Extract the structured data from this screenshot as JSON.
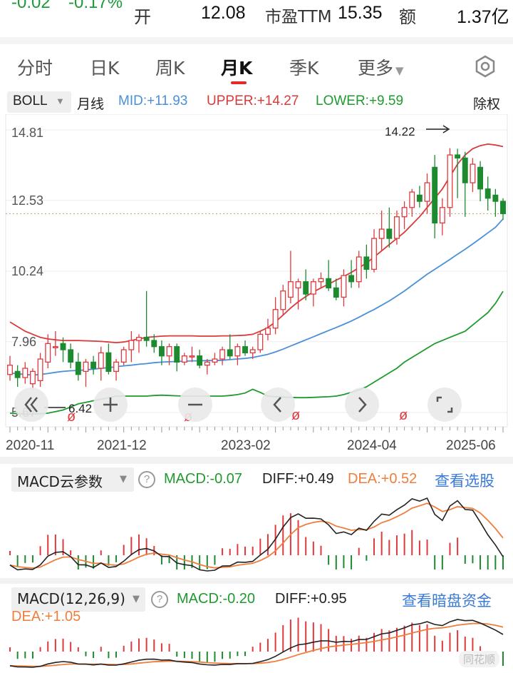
{
  "quote": {
    "change": "-0.02",
    "change_pct": "-0.17%",
    "open_label": "开",
    "open_value": "12.08",
    "pe_label": "市盈TTM",
    "pe_value": "15.35",
    "amount_label": "额",
    "amount_value": "1.37亿"
  },
  "tabs": [
    {
      "label": "分时"
    },
    {
      "label": "日K"
    },
    {
      "label": "周K"
    },
    {
      "label": "月K"
    },
    {
      "label": "季K"
    },
    {
      "label": "更多"
    }
  ],
  "active_tab": "月K",
  "indicator": {
    "name": "BOLL",
    "period": "月线",
    "mid": "MID:+11.93",
    "upper": "UPPER:+14.27",
    "lower": "LOWER:+9.59",
    "adjust": "除权"
  },
  "colors": {
    "up": "#e0393e",
    "down": "#1d8a2f",
    "mid": "#4a90d9",
    "upper": "#d93a3a",
    "lower": "#1f9a2e",
    "dea": "#ef7d3c",
    "diff": "#222222",
    "link": "#3a7bd5"
  },
  "main_chart": {
    "y_ticks": [
      "14.81",
      "12.53",
      "10.24",
      "7.96",
      "5.67"
    ],
    "x_ticks": [
      "2020-11",
      "2021-12",
      "2023-02",
      "2024-04",
      "2025-06"
    ],
    "high_annotation": "14.22",
    "low_annotation": "6.42",
    "ex_marker": "ø",
    "last_price_line": 12.1
  },
  "macd_cloud": {
    "name": "MACD云参数",
    "macd": "MACD:-0.07",
    "diff": "DIFF:+0.49",
    "dea": "DEA:+0.52",
    "link": "查看选股"
  },
  "macd": {
    "name": "MACD(12,26,9)",
    "macd": "MACD:-0.20",
    "diff": "DIFF:+0.95",
    "dea": "DEA:+1.05",
    "link": "查看暗盘资金",
    "watermark": "同花顺"
  },
  "chart_data": {
    "type": "candlestick",
    "ylim": [
      5.67,
      14.81
    ],
    "candles": [
      {
        "o": 6.9,
        "h": 7.5,
        "l": 6.7,
        "c": 7.2
      },
      {
        "o": 7.0,
        "h": 7.2,
        "l": 6.5,
        "c": 6.8
      },
      {
        "o": 6.8,
        "h": 7.3,
        "l": 6.6,
        "c": 7.1
      },
      {
        "o": 6.6,
        "h": 7.1,
        "l": 6.42,
        "c": 7.0
      },
      {
        "o": 6.7,
        "h": 7.6,
        "l": 6.5,
        "c": 7.4
      },
      {
        "o": 7.3,
        "h": 8.2,
        "l": 7.1,
        "c": 7.9
      },
      {
        "o": 7.8,
        "h": 8.3,
        "l": 7.5,
        "c": 7.8
      },
      {
        "o": 7.9,
        "h": 8.1,
        "l": 7.3,
        "c": 7.7
      },
      {
        "o": 7.7,
        "h": 7.9,
        "l": 7.1,
        "c": 7.3
      },
      {
        "o": 7.3,
        "h": 7.6,
        "l": 6.7,
        "c": 6.9
      },
      {
        "o": 7.0,
        "h": 7.4,
        "l": 6.5,
        "c": 7.3
      },
      {
        "o": 7.3,
        "h": 7.5,
        "l": 6.9,
        "c": 7.1
      },
      {
        "o": 7.1,
        "h": 7.8,
        "l": 6.7,
        "c": 7.6
      },
      {
        "o": 7.6,
        "h": 7.9,
        "l": 6.9,
        "c": 7.0
      },
      {
        "o": 7.0,
        "h": 7.4,
        "l": 6.7,
        "c": 7.3
      },
      {
        "o": 7.3,
        "h": 7.8,
        "l": 7.2,
        "c": 7.7
      },
      {
        "o": 7.7,
        "h": 8.3,
        "l": 7.3,
        "c": 8.0
      },
      {
        "o": 8.0,
        "h": 8.2,
        "l": 7.6,
        "c": 8.1
      },
      {
        "o": 8.1,
        "h": 9.6,
        "l": 7.8,
        "c": 8.0
      },
      {
        "o": 8.0,
        "h": 8.2,
        "l": 7.6,
        "c": 7.8
      },
      {
        "o": 7.8,
        "h": 8.0,
        "l": 7.2,
        "c": 7.5
      },
      {
        "o": 7.5,
        "h": 7.9,
        "l": 7.2,
        "c": 7.8
      },
      {
        "o": 7.8,
        "h": 7.9,
        "l": 7.0,
        "c": 7.3
      },
      {
        "o": 7.3,
        "h": 7.6,
        "l": 7.2,
        "c": 7.5
      },
      {
        "o": 7.5,
        "h": 7.8,
        "l": 7.3,
        "c": 7.5
      },
      {
        "o": 7.5,
        "h": 7.7,
        "l": 7.1,
        "c": 7.2
      },
      {
        "o": 7.2,
        "h": 7.4,
        "l": 6.9,
        "c": 7.3
      },
      {
        "o": 7.3,
        "h": 7.6,
        "l": 7.2,
        "c": 7.4
      },
      {
        "o": 7.4,
        "h": 7.8,
        "l": 7.2,
        "c": 7.7
      },
      {
        "o": 7.7,
        "h": 8.2,
        "l": 7.4,
        "c": 7.5
      },
      {
        "o": 7.5,
        "h": 7.9,
        "l": 7.2,
        "c": 7.8
      },
      {
        "o": 7.8,
        "h": 8.0,
        "l": 7.5,
        "c": 7.6
      },
      {
        "o": 7.6,
        "h": 7.8,
        "l": 7.4,
        "c": 7.7
      },
      {
        "o": 7.7,
        "h": 8.3,
        "l": 7.6,
        "c": 8.2
      },
      {
        "o": 8.2,
        "h": 8.7,
        "l": 8.0,
        "c": 8.4
      },
      {
        "o": 8.4,
        "h": 9.4,
        "l": 8.2,
        "c": 9.0
      },
      {
        "o": 9.0,
        "h": 9.8,
        "l": 8.8,
        "c": 9.6
      },
      {
        "o": 9.4,
        "h": 10.9,
        "l": 9.2,
        "c": 9.9
      },
      {
        "o": 9.7,
        "h": 10.0,
        "l": 9.0,
        "c": 9.9
      },
      {
        "o": 9.9,
        "h": 10.3,
        "l": 9.3,
        "c": 9.5
      },
      {
        "o": 9.5,
        "h": 10.0,
        "l": 9.1,
        "c": 9.9
      },
      {
        "o": 9.9,
        "h": 10.2,
        "l": 9.7,
        "c": 10.0
      },
      {
        "o": 10.0,
        "h": 10.6,
        "l": 9.6,
        "c": 9.7
      },
      {
        "o": 9.7,
        "h": 10.0,
        "l": 9.3,
        "c": 9.4
      },
      {
        "o": 9.4,
        "h": 10.3,
        "l": 9.1,
        "c": 10.1
      },
      {
        "o": 10.1,
        "h": 10.6,
        "l": 9.7,
        "c": 9.9
      },
      {
        "o": 9.9,
        "h": 10.9,
        "l": 9.7,
        "c": 10.7
      },
      {
        "o": 10.7,
        "h": 11.1,
        "l": 10.0,
        "c": 10.3
      },
      {
        "o": 10.3,
        "h": 11.6,
        "l": 10.2,
        "c": 11.3
      },
      {
        "o": 11.3,
        "h": 12.2,
        "l": 10.9,
        "c": 11.6
      },
      {
        "o": 11.6,
        "h": 12.3,
        "l": 11.0,
        "c": 11.3
      },
      {
        "o": 11.3,
        "h": 12.2,
        "l": 11.1,
        "c": 12.0
      },
      {
        "o": 12.0,
        "h": 12.5,
        "l": 11.6,
        "c": 12.3
      },
      {
        "o": 12.3,
        "h": 12.9,
        "l": 12.0,
        "c": 12.8
      },
      {
        "o": 12.7,
        "h": 13.0,
        "l": 12.3,
        "c": 12.5
      },
      {
        "o": 12.5,
        "h": 13.4,
        "l": 12.1,
        "c": 13.1
      },
      {
        "o": 13.6,
        "h": 14.0,
        "l": 11.3,
        "c": 11.8
      },
      {
        "o": 11.8,
        "h": 12.6,
        "l": 11.4,
        "c": 12.3
      },
      {
        "o": 12.3,
        "h": 14.22,
        "l": 12.0,
        "c": 14.0
      },
      {
        "o": 14.0,
        "h": 14.2,
        "l": 12.6,
        "c": 13.9
      },
      {
        "o": 13.9,
        "h": 14.1,
        "l": 12.0,
        "c": 13.1
      },
      {
        "o": 13.1,
        "h": 13.9,
        "l": 12.8,
        "c": 13.7
      },
      {
        "o": 13.6,
        "h": 13.8,
        "l": 12.5,
        "c": 12.9
      },
      {
        "o": 12.9,
        "h": 13.3,
        "l": 12.2,
        "c": 12.6
      },
      {
        "o": 12.7,
        "h": 12.9,
        "l": 12.0,
        "c": 12.5
      },
      {
        "o": 12.5,
        "h": 12.6,
        "l": 11.9,
        "c": 12.1
      }
    ],
    "mid": [
      6.95,
      6.92,
      6.9,
      6.88,
      6.9,
      6.93,
      6.97,
      7.0,
      7.02,
      7.03,
      7.05,
      7.07,
      7.1,
      7.12,
      7.15,
      7.18,
      7.2,
      7.23,
      7.25,
      7.28,
      7.3,
      7.31,
      7.32,
      7.33,
      7.34,
      7.34,
      7.35,
      7.35,
      7.36,
      7.38,
      7.4,
      7.42,
      7.45,
      7.5,
      7.55,
      7.63,
      7.72,
      7.82,
      7.92,
      8.02,
      8.12,
      8.22,
      8.32,
      8.42,
      8.52,
      8.63,
      8.75,
      8.88,
      9.0,
      9.14,
      9.28,
      9.44,
      9.6,
      9.78,
      9.96,
      10.14,
      10.3,
      10.46,
      10.62,
      10.79,
      10.95,
      11.12,
      11.3,
      11.48,
      11.66,
      11.93
    ],
    "upper": [
      8.6,
      8.45,
      8.3,
      8.2,
      8.1,
      8.05,
      8.02,
      8.0,
      8.0,
      8.0,
      7.99,
      7.98,
      7.97,
      7.95,
      7.93,
      7.95,
      8.0,
      8.05,
      8.1,
      8.12,
      8.14,
      8.15,
      8.15,
      8.15,
      8.15,
      8.14,
      8.14,
      8.14,
      8.15,
      8.15,
      8.16,
      8.17,
      8.2,
      8.3,
      8.42,
      8.6,
      8.82,
      9.05,
      9.25,
      9.42,
      9.57,
      9.7,
      9.82,
      9.95,
      10.07,
      10.2,
      10.35,
      10.5,
      10.7,
      10.9,
      11.1,
      11.3,
      11.5,
      11.75,
      12.0,
      12.3,
      12.6,
      12.9,
      13.3,
      13.7,
      14.0,
      14.2,
      14.3,
      14.35,
      14.32,
      14.27
    ],
    "lower": [
      5.65,
      5.63,
      5.62,
      5.62,
      5.63,
      5.65,
      5.7,
      5.75,
      5.85,
      5.95,
      6.0,
      6.05,
      6.1,
      6.15,
      6.2,
      6.2,
      6.2,
      6.2,
      6.2,
      6.22,
      6.23,
      6.22,
      6.21,
      6.2,
      6.2,
      6.2,
      6.2,
      6.2,
      6.2,
      6.22,
      6.25,
      6.3,
      6.42,
      6.32,
      6.2,
      6.18,
      6.17,
      6.16,
      6.15,
      6.15,
      6.16,
      6.17,
      6.18,
      6.2,
      6.25,
      6.32,
      6.4,
      6.5,
      6.65,
      6.8,
      6.95,
      7.1,
      7.3,
      7.45,
      7.6,
      7.75,
      7.9,
      8.0,
      8.1,
      8.2,
      8.3,
      8.5,
      8.7,
      8.9,
      9.2,
      9.59
    ]
  }
}
